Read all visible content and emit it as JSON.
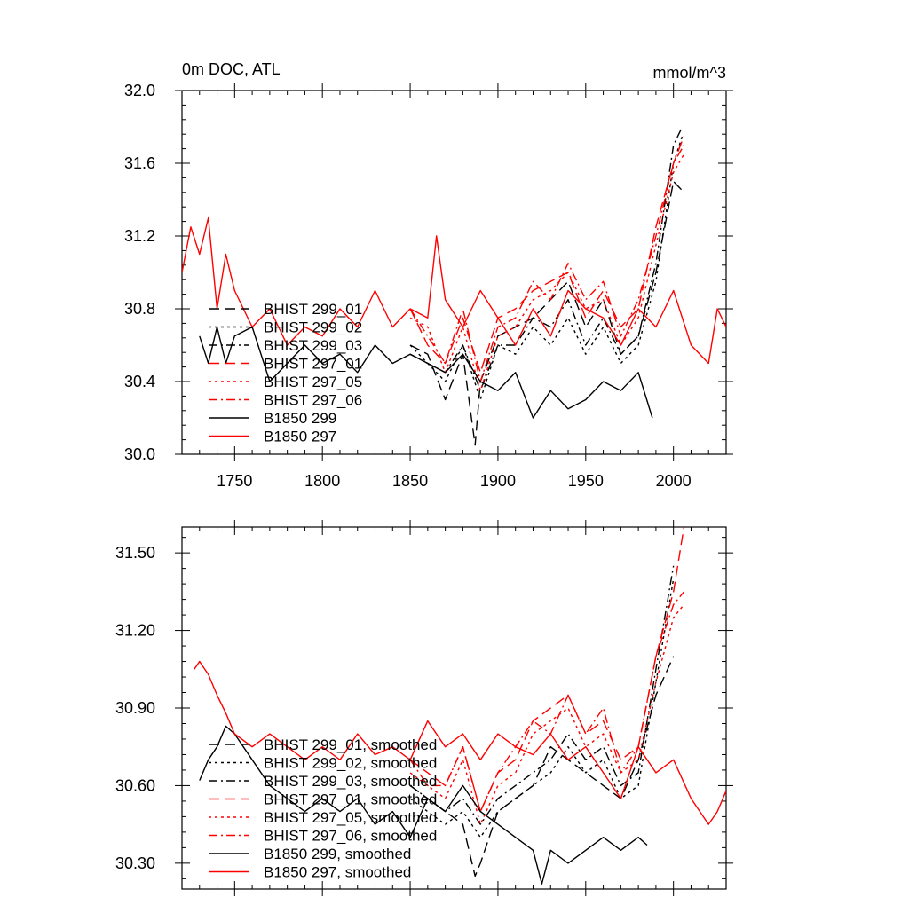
{
  "chart_data": [
    {
      "type": "line",
      "title": "0m DOC, ATL",
      "units": "mmol/m^3",
      "xlabel": "",
      "ylabel": "",
      "xlim": [
        1720,
        2030
      ],
      "ylim": [
        30.0,
        32.0
      ],
      "x_ticks": [
        1750,
        1800,
        1850,
        1900,
        1950,
        2000
      ],
      "x_tick_labels": [
        "1750",
        "1800",
        "1850",
        "1900",
        "1950",
        "2000"
      ],
      "y_ticks": [
        30.0,
        30.4,
        30.8,
        31.2,
        31.6,
        32.0
      ],
      "y_tick_labels": [
        "30.0",
        "30.4",
        "30.8",
        "31.2",
        "31.6",
        "32.0"
      ],
      "grid": false,
      "legend_position": "lower-left",
      "series": [
        {
          "name": "BHIST 299_01",
          "color": "#000000",
          "dash": "long-dash",
          "x": [
            1850,
            1860,
            1870,
            1880,
            1887,
            1890,
            1900,
            1910,
            1920,
            1930,
            1940,
            1950,
            1960,
            1970,
            1980,
            1990,
            2000,
            2005
          ],
          "y": [
            30.6,
            30.55,
            30.3,
            30.55,
            30.05,
            30.4,
            30.65,
            30.7,
            30.75,
            30.85,
            30.95,
            30.7,
            30.85,
            30.55,
            30.65,
            31.0,
            31.5,
            31.45
          ]
        },
        {
          "name": "BHIST 299_02",
          "color": "#000000",
          "dash": "dot",
          "x": [
            1850,
            1860,
            1870,
            1880,
            1890,
            1900,
            1910,
            1920,
            1930,
            1940,
            1950,
            1960,
            1970,
            1980,
            1990,
            2000,
            2005
          ],
          "y": [
            30.6,
            30.5,
            30.4,
            30.6,
            30.3,
            30.6,
            30.55,
            30.7,
            30.6,
            30.75,
            30.55,
            30.7,
            30.5,
            30.6,
            30.95,
            31.6,
            31.75
          ]
        },
        {
          "name": "BHIST 299_03",
          "color": "#000000",
          "dash": "dash-dot",
          "x": [
            1850,
            1860,
            1870,
            1880,
            1890,
            1900,
            1910,
            1920,
            1930,
            1940,
            1950,
            1960,
            1970,
            1980,
            1990,
            2000,
            2005
          ],
          "y": [
            30.55,
            30.5,
            30.45,
            30.6,
            30.35,
            30.6,
            30.6,
            30.75,
            30.7,
            30.85,
            30.6,
            30.75,
            30.55,
            30.65,
            31.05,
            31.7,
            31.8
          ]
        },
        {
          "name": "BHIST 297_01",
          "color": "#ff0000",
          "dash": "long-dash",
          "x": [
            1850,
            1860,
            1870,
            1880,
            1890,
            1900,
            1910,
            1920,
            1930,
            1940,
            1950,
            1960,
            1970,
            1980,
            1990,
            2000,
            2006
          ],
          "y": [
            30.8,
            30.6,
            30.5,
            30.75,
            30.45,
            30.75,
            30.8,
            30.9,
            30.95,
            31.0,
            30.75,
            30.9,
            30.7,
            30.8,
            31.25,
            31.6,
            31.75
          ]
        },
        {
          "name": "BHIST 297_05",
          "color": "#ff0000",
          "dash": "dot",
          "x": [
            1850,
            1860,
            1870,
            1880,
            1890,
            1900,
            1910,
            1920,
            1930,
            1940,
            1950,
            1960,
            1970,
            1980,
            1990,
            2000,
            2006
          ],
          "y": [
            30.75,
            30.7,
            30.45,
            30.7,
            30.35,
            30.65,
            30.7,
            30.85,
            30.9,
            31.0,
            30.8,
            30.85,
            30.6,
            30.75,
            31.15,
            31.55,
            31.65
          ]
        },
        {
          "name": "BHIST 297_06",
          "color": "#ff0000",
          "dash": "dash-dot",
          "x": [
            1850,
            1860,
            1870,
            1880,
            1890,
            1900,
            1910,
            1920,
            1930,
            1940,
            1950,
            1960,
            1970,
            1980,
            1990,
            2000,
            2006
          ],
          "y": [
            30.8,
            30.65,
            30.5,
            30.8,
            30.4,
            30.7,
            30.75,
            30.95,
            30.85,
            31.05,
            30.85,
            30.95,
            30.65,
            30.85,
            31.2,
            31.6,
            31.7
          ]
        },
        {
          "name": "B1850 299",
          "color": "#000000",
          "dash": "solid",
          "x": [
            1730,
            1735,
            1740,
            1745,
            1750,
            1760,
            1770,
            1780,
            1790,
            1800,
            1810,
            1820,
            1830,
            1840,
            1850,
            1860,
            1870,
            1880,
            1890,
            1900,
            1910,
            1920,
            1930,
            1940,
            1950,
            1960,
            1970,
            1980,
            1988
          ],
          "y": [
            30.65,
            30.5,
            30.7,
            30.5,
            30.65,
            30.7,
            30.4,
            30.5,
            30.6,
            30.5,
            30.55,
            30.45,
            30.6,
            30.5,
            30.55,
            30.5,
            30.45,
            30.55,
            30.4,
            30.35,
            30.45,
            30.2,
            30.35,
            30.25,
            30.3,
            30.4,
            30.35,
            30.45,
            30.2
          ]
        },
        {
          "name": "B1850 297",
          "color": "#ff0000",
          "dash": "solid",
          "x": [
            1720,
            1725,
            1730,
            1735,
            1740,
            1745,
            1750,
            1760,
            1770,
            1780,
            1790,
            1800,
            1810,
            1820,
            1830,
            1840,
            1850,
            1860,
            1865,
            1870,
            1880,
            1890,
            1900,
            1910,
            1920,
            1930,
            1940,
            1950,
            1960,
            1970,
            1980,
            1990,
            2000,
            2010,
            2020,
            2025,
            2030
          ],
          "y": [
            31.0,
            31.25,
            31.1,
            31.3,
            30.8,
            31.1,
            30.9,
            30.7,
            30.8,
            30.6,
            30.7,
            30.65,
            30.8,
            30.7,
            30.9,
            30.7,
            30.8,
            30.75,
            31.2,
            30.85,
            30.7,
            30.9,
            30.75,
            30.6,
            30.8,
            30.65,
            30.9,
            30.8,
            30.75,
            30.6,
            30.8,
            30.7,
            30.9,
            30.6,
            30.5,
            30.8,
            30.7
          ]
        }
      ]
    },
    {
      "type": "line",
      "title": "",
      "xlabel": "",
      "ylabel": "",
      "xlim": [
        1720,
        2030
      ],
      "ylim": [
        30.2,
        31.6
      ],
      "x_ticks": [
        1750,
        1800,
        1850,
        1900,
        1950,
        2000
      ],
      "x_tick_labels": [],
      "y_ticks": [
        30.3,
        30.6,
        30.9,
        31.2,
        31.5
      ],
      "y_tick_labels": [
        "30.30",
        "30.60",
        "30.90",
        "31.20",
        "31.50"
      ],
      "grid": false,
      "legend_position": "lower-left",
      "series": [
        {
          "name": "BHIST 299_01, smoothed",
          "color": "#000000",
          "dash": "long-dash",
          "x": [
            1850,
            1860,
            1870,
            1880,
            1887,
            1890,
            1900,
            1910,
            1920,
            1930,
            1940,
            1950,
            1960,
            1970,
            1980,
            1990,
            2000
          ],
          "y": [
            30.6,
            30.55,
            30.5,
            30.45,
            30.25,
            30.3,
            30.5,
            30.55,
            30.6,
            30.75,
            30.7,
            30.65,
            30.6,
            30.55,
            30.7,
            30.95,
            31.1
          ]
        },
        {
          "name": "BHIST 299_02, smoothed",
          "color": "#000000",
          "dash": "dot",
          "x": [
            1850,
            1860,
            1870,
            1880,
            1890,
            1900,
            1910,
            1920,
            1930,
            1940,
            1950,
            1960,
            1970,
            1980,
            1990,
            2000
          ],
          "y": [
            30.55,
            30.5,
            30.45,
            30.5,
            30.4,
            30.5,
            30.55,
            30.6,
            30.65,
            30.75,
            30.65,
            30.7,
            30.55,
            30.6,
            31.0,
            31.4
          ]
        },
        {
          "name": "BHIST 299_03, smoothed",
          "color": "#000000",
          "dash": "dash-dot",
          "x": [
            1850,
            1860,
            1870,
            1880,
            1890,
            1900,
            1910,
            1920,
            1930,
            1940,
            1950,
            1960,
            1970,
            1980,
            1990,
            2000
          ],
          "y": [
            30.6,
            30.55,
            30.5,
            30.55,
            30.45,
            30.55,
            30.6,
            30.65,
            30.7,
            30.8,
            30.7,
            30.75,
            30.6,
            30.65,
            31.05,
            31.45
          ]
        },
        {
          "name": "BHIST 297_01, smoothed",
          "color": "#ff0000",
          "dash": "long-dash",
          "x": [
            1850,
            1860,
            1870,
            1880,
            1890,
            1900,
            1910,
            1920,
            1930,
            1940,
            1950,
            1960,
            1970,
            1980,
            1990,
            2000,
            2006
          ],
          "y": [
            30.7,
            30.65,
            30.6,
            30.75,
            30.5,
            30.65,
            30.7,
            30.85,
            30.9,
            30.95,
            30.8,
            30.85,
            30.7,
            30.75,
            31.1,
            31.35,
            31.6
          ]
        },
        {
          "name": "BHIST 297_05, smoothed",
          "color": "#ff0000",
          "dash": "dot",
          "x": [
            1850,
            1860,
            1870,
            1880,
            1890,
            1900,
            1910,
            1920,
            1930,
            1940,
            1950,
            1960,
            1970,
            1980,
            1990,
            2000,
            2006
          ],
          "y": [
            30.65,
            30.6,
            30.55,
            30.7,
            30.45,
            30.6,
            30.65,
            30.8,
            30.85,
            30.9,
            30.75,
            30.8,
            30.65,
            30.7,
            31.0,
            31.25,
            31.3
          ]
        },
        {
          "name": "BHIST 297_06, smoothed",
          "color": "#ff0000",
          "dash": "dash-dot",
          "x": [
            1850,
            1860,
            1870,
            1880,
            1890,
            1900,
            1910,
            1920,
            1930,
            1940,
            1950,
            1960,
            1970,
            1980,
            1990,
            2000,
            2006
          ],
          "y": [
            30.7,
            30.6,
            30.6,
            30.75,
            30.5,
            30.65,
            30.75,
            30.85,
            30.8,
            30.95,
            30.8,
            30.9,
            30.65,
            30.75,
            31.1,
            31.3,
            31.35
          ]
        },
        {
          "name": "B1850 299, smoothed",
          "color": "#000000",
          "dash": "solid",
          "x": [
            1730,
            1735,
            1740,
            1745,
            1750,
            1760,
            1770,
            1780,
            1790,
            1800,
            1810,
            1820,
            1830,
            1840,
            1850,
            1860,
            1870,
            1880,
            1890,
            1900,
            1910,
            1920,
            1925,
            1930,
            1940,
            1950,
            1960,
            1970,
            1980,
            1985
          ],
          "y": [
            30.62,
            30.7,
            30.75,
            30.83,
            30.8,
            30.7,
            30.6,
            30.55,
            30.5,
            30.55,
            30.5,
            30.55,
            30.45,
            30.5,
            30.4,
            30.55,
            30.5,
            30.6,
            30.5,
            30.45,
            30.4,
            30.35,
            30.22,
            30.35,
            30.3,
            30.35,
            30.4,
            30.35,
            30.4,
            30.37
          ]
        },
        {
          "name": "B1850 297, smoothed",
          "color": "#ff0000",
          "dash": "solid",
          "x": [
            1727,
            1730,
            1735,
            1740,
            1745,
            1750,
            1760,
            1770,
            1780,
            1790,
            1800,
            1810,
            1820,
            1830,
            1840,
            1850,
            1860,
            1870,
            1880,
            1890,
            1900,
            1910,
            1920,
            1930,
            1940,
            1950,
            1960,
            1970,
            1980,
            1990,
            2000,
            2010,
            2020,
            2025,
            2030
          ],
          "y": [
            31.05,
            31.08,
            31.03,
            30.95,
            30.88,
            30.8,
            30.75,
            30.8,
            30.75,
            30.7,
            30.75,
            30.7,
            30.8,
            30.72,
            30.75,
            30.7,
            30.85,
            30.75,
            30.8,
            30.7,
            30.8,
            30.75,
            30.72,
            30.8,
            30.7,
            30.75,
            30.65,
            30.55,
            30.75,
            30.65,
            30.7,
            30.55,
            30.45,
            30.5,
            30.58
          ]
        }
      ]
    }
  ]
}
